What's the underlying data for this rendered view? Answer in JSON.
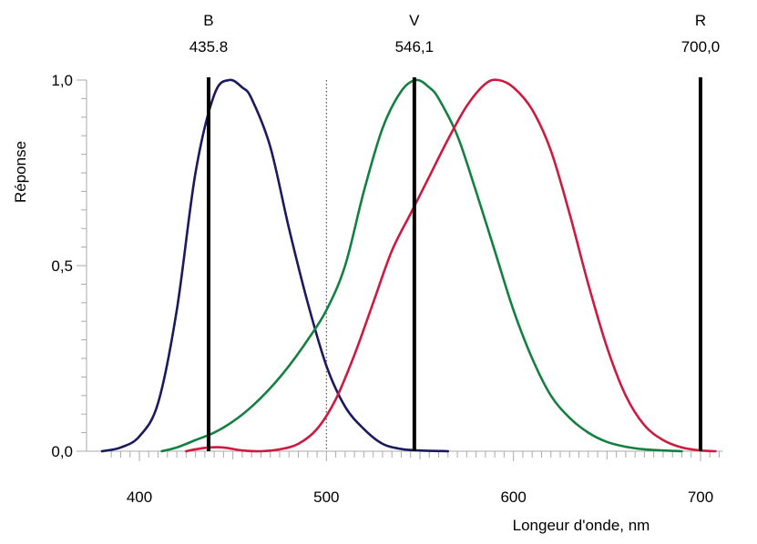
{
  "chart_data": {
    "type": "line",
    "title": "",
    "xlabel": "Longeur d'onde, nm",
    "ylabel": "Réponse",
    "xlim": [
      380,
      712
    ],
    "ylim": [
      0,
      1.0
    ],
    "x_ticks": [
      400,
      500,
      600,
      700
    ],
    "x_tick_labels": [
      "400",
      "500",
      "600",
      "700"
    ],
    "y_ticks": [
      0,
      0.5,
      1.0
    ],
    "y_tick_labels": [
      "0,0",
      "0,5",
      "1,0"
    ],
    "reference_line_x": 500,
    "primaries": [
      {
        "name": "B",
        "label": "435.8",
        "x": 437
      },
      {
        "name": "V",
        "label": "546,1",
        "x": 547
      },
      {
        "name": "R",
        "label": "700,0",
        "x": 700
      }
    ],
    "series": [
      {
        "color": "#1a1a5e",
        "points": [
          [
            380,
            0
          ],
          [
            390,
            0.01
          ],
          [
            400,
            0.04
          ],
          [
            410,
            0.13
          ],
          [
            420,
            0.38
          ],
          [
            430,
            0.75
          ],
          [
            440,
            0.96
          ],
          [
            448,
            1.0
          ],
          [
            455,
            0.98
          ],
          [
            460,
            0.95
          ],
          [
            470,
            0.82
          ],
          [
            480,
            0.6
          ],
          [
            490,
            0.4
          ],
          [
            500,
            0.23
          ],
          [
            510,
            0.12
          ],
          [
            520,
            0.06
          ],
          [
            530,
            0.02
          ],
          [
            540,
            0.006
          ],
          [
            550,
            0.002
          ],
          [
            565,
            0
          ]
        ]
      },
      {
        "color": "#138041",
        "points": [
          [
            412,
            0
          ],
          [
            420,
            0.01
          ],
          [
            430,
            0.03
          ],
          [
            440,
            0.05
          ],
          [
            450,
            0.08
          ],
          [
            460,
            0.12
          ],
          [
            470,
            0.17
          ],
          [
            480,
            0.23
          ],
          [
            490,
            0.3
          ],
          [
            500,
            0.38
          ],
          [
            510,
            0.5
          ],
          [
            520,
            0.7
          ],
          [
            530,
            0.87
          ],
          [
            540,
            0.97
          ],
          [
            548,
            1.0
          ],
          [
            555,
            0.98
          ],
          [
            560,
            0.95
          ],
          [
            570,
            0.85
          ],
          [
            580,
            0.7
          ],
          [
            590,
            0.54
          ],
          [
            600,
            0.38
          ],
          [
            610,
            0.25
          ],
          [
            620,
            0.15
          ],
          [
            630,
            0.09
          ],
          [
            640,
            0.05
          ],
          [
            650,
            0.025
          ],
          [
            660,
            0.012
          ],
          [
            670,
            0.005
          ],
          [
            680,
            0.002
          ],
          [
            690,
            0
          ]
        ]
      },
      {
        "color": "#cc1a40",
        "points": [
          [
            425,
            0
          ],
          [
            430,
            0.005
          ],
          [
            437,
            0.01
          ],
          [
            445,
            0.01
          ],
          [
            455,
            0.002
          ],
          [
            465,
            0
          ],
          [
            475,
            0.005
          ],
          [
            485,
            0.02
          ],
          [
            495,
            0.06
          ],
          [
            505,
            0.14
          ],
          [
            515,
            0.26
          ],
          [
            525,
            0.4
          ],
          [
            535,
            0.54
          ],
          [
            545,
            0.64
          ],
          [
            555,
            0.74
          ],
          [
            565,
            0.84
          ],
          [
            575,
            0.93
          ],
          [
            585,
            0.99
          ],
          [
            592,
            1.0
          ],
          [
            600,
            0.98
          ],
          [
            610,
            0.92
          ],
          [
            620,
            0.81
          ],
          [
            630,
            0.64
          ],
          [
            640,
            0.45
          ],
          [
            650,
            0.28
          ],
          [
            660,
            0.15
          ],
          [
            670,
            0.07
          ],
          [
            680,
            0.03
          ],
          [
            690,
            0.01
          ],
          [
            700,
            0.002
          ],
          [
            708,
            0
          ]
        ]
      }
    ]
  }
}
